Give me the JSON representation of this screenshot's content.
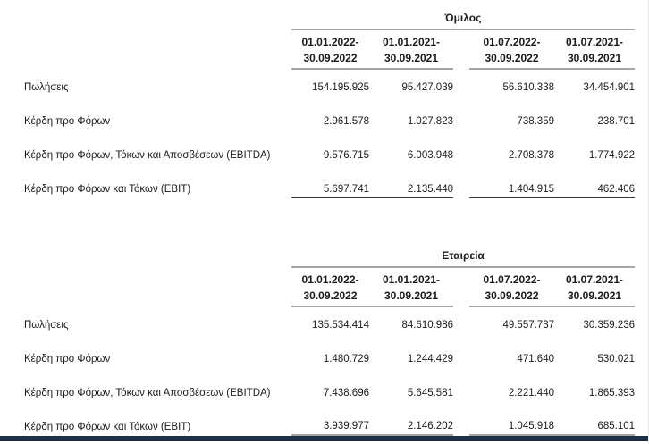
{
  "page": {
    "rule_color": "#a6a6a6",
    "final_rule_color": "#3d3d3d",
    "accent_bar_color": "#1e3048"
  },
  "tables": [
    {
      "title": "Όμιλος",
      "columns": [
        {
          "line1": "01.01.2022-",
          "line2": "30.09.2022"
        },
        {
          "line1": "01.01.2021-",
          "line2": "30.09.2021"
        },
        {
          "line1": "01.07.2022-",
          "line2": "30.09.2022"
        },
        {
          "line1": "01.07.2021-",
          "line2": "30.09.2021"
        }
      ],
      "rows": [
        {
          "label": "Πωλήσεις",
          "values": [
            "154.195.925",
            "95.427.039",
            "56.610.338",
            "34.454.901"
          ]
        },
        {
          "label": "Κέρδη προ Φόρων",
          "values": [
            "2.961.578",
            "1.027.823",
            "738.359",
            "238.701"
          ]
        },
        {
          "label": "Κέρδη προ Φόρων, Τόκων και Αποσβέσεων (EBITDA)",
          "values": [
            "9.576.715",
            "6.003.948",
            "2.708.378",
            "1.774.922"
          ]
        },
        {
          "label": "Κέρδη προ Φόρων και Τόκων (EBIT)",
          "values": [
            "5.697.741",
            "2.135.440",
            "1.404.915",
            "462.406"
          ]
        }
      ]
    },
    {
      "title": "Εταιρεία",
      "columns": [
        {
          "line1": "01.01.2022-",
          "line2": "30.09.2022"
        },
        {
          "line1": "01.01.2021-",
          "line2": "30.09.2021"
        },
        {
          "line1": "01.07.2022-",
          "line2": "30.09.2022"
        },
        {
          "line1": "01.07.2021-",
          "line2": "30.09.2021"
        }
      ],
      "rows": [
        {
          "label": "Πωλήσεις",
          "values": [
            "135.534.414",
            "84.610.986",
            "49.557.737",
            "30.359.236"
          ]
        },
        {
          "label": "Κέρδη προ Φόρων",
          "values": [
            "1.480.729",
            "1.244.429",
            "471.640",
            "530.021"
          ]
        },
        {
          "label": "Κέρδη προ Φόρων, Τόκων και Αποσβέσεων (EBITDA)",
          "values": [
            "7.438.696",
            "5.645.581",
            "2.221.440",
            "1.865.393"
          ]
        },
        {
          "label": "Κέρδη προ Φόρων και Τόκων (EBIT)",
          "values": [
            "3.939.977",
            "2.146.202",
            "1.045.918",
            "685.101"
          ]
        }
      ]
    }
  ]
}
